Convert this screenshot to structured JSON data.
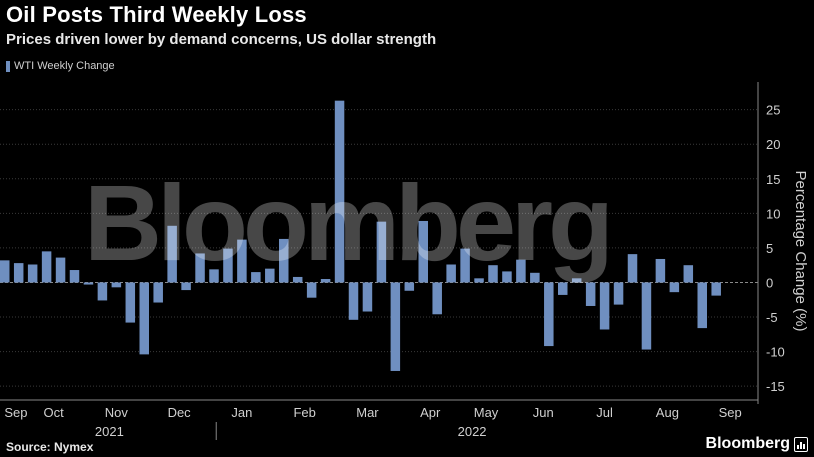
{
  "header": {
    "title": "Oil Posts Third Weekly Loss",
    "subtitle": "Prices driven lower by demand concerns, US dollar strength"
  },
  "footer": {
    "source": "Source: Nymex",
    "brand": "Bloomberg"
  },
  "watermark": "Bloomberg",
  "colors": {
    "bar": "#6f8fc0",
    "grid": "#3a3a3a",
    "zero": "#8a8a8a",
    "background": "#000000"
  },
  "chart_data": {
    "type": "bar",
    "title": "Oil Posts Third Weekly Loss",
    "subtitle": "Prices driven lower by demand concerns, US dollar strength",
    "ylabel": "Percentage Change (%)",
    "xlabel": "",
    "ylim": [
      -17,
      29
    ],
    "yticks": [
      25,
      20,
      15,
      10,
      5,
      0,
      -5,
      -10,
      -15
    ],
    "y_axis_side": "right",
    "grid": true,
    "legend": {
      "position": "top-left",
      "entries": [
        "WTI Weekly Change"
      ]
    },
    "month_labels": [
      "Sep",
      "Oct",
      "Nov",
      "Dec",
      "Jan",
      "Feb",
      "Mar",
      "Apr",
      "May",
      "Jun",
      "Jul",
      "Aug",
      "Sep"
    ],
    "month_bar_index": [
      0.8,
      3.5,
      8,
      12.5,
      17,
      21.5,
      26,
      30.5,
      34.5,
      38.6,
      43,
      47.5,
      52
    ],
    "year_labels": [
      {
        "label": "2021",
        "bar_index": 7.5
      },
      {
        "label": "2022",
        "bar_index": 33.5
      }
    ],
    "series": [
      {
        "name": "WTI Weekly Change",
        "values": [
          3.2,
          2.8,
          2.6,
          4.5,
          3.6,
          1.8,
          -0.3,
          -2.6,
          -0.7,
          -5.8,
          -10.4,
          -2.9,
          8.2,
          -1.1,
          4.2,
          1.9,
          4.9,
          6.2,
          1.5,
          2.0,
          6.3,
          0.8,
          -2.2,
          0.5,
          26.3,
          -5.4,
          -4.2,
          8.8,
          -12.8,
          -1.2,
          8.9,
          -4.6,
          2.6,
          4.9,
          0.6,
          2.5,
          1.6,
          3.3,
          1.4,
          -9.2,
          -1.8,
          0.6,
          -3.4,
          -6.8,
          -3.2,
          4.1,
          -9.7,
          3.4,
          -1.4,
          2.5,
          -6.6,
          -1.9
        ]
      }
    ]
  }
}
